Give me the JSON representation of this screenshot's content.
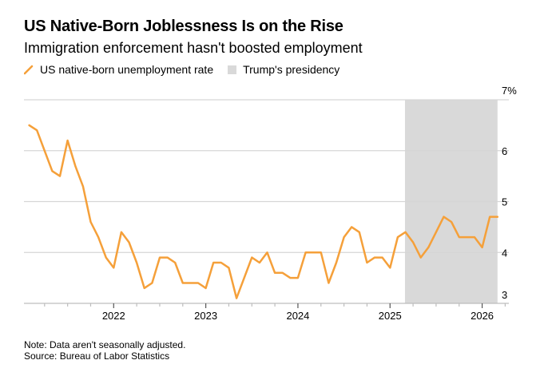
{
  "header": {
    "title": "US Native-Born Joblessness Is on the Rise",
    "subtitle": "Immigration enforcement hasn't boosted employment"
  },
  "legend": {
    "series_label": "US native-born unemployment rate",
    "shading_label": "Trump's presidency"
  },
  "footer": {
    "note": "Note: Data aren't seasonally adjusted.",
    "source": "Source: Bureau of Labor Statistics"
  },
  "colors": {
    "line": "#f5a03a",
    "shading": "#d9d9d9",
    "grid": "#d6d6d6",
    "axis": "#bdbdbd"
  },
  "chart_data": {
    "type": "line",
    "title": "US Native-Born Joblessness Is on the Rise",
    "subtitle": "Immigration enforcement hasn't boosted employment",
    "xlabel": "",
    "ylabel": "",
    "ylim": [
      3,
      7
    ],
    "y_ticks": [
      "3",
      "4",
      "5",
      "6",
      "7%"
    ],
    "x_ticks": [
      "2022",
      "2023",
      "2024",
      "2025",
      "2026"
    ],
    "grid": true,
    "legend_position": "top-left",
    "y_axis_side": "right",
    "shaded_region": {
      "name": "Trump's presidency",
      "start": "2025-03",
      "end": "2026-03"
    },
    "series": [
      {
        "name": "US native-born unemployment rate",
        "x": [
          "2021-02",
          "2021-03",
          "2021-04",
          "2021-05",
          "2021-06",
          "2021-07",
          "2021-08",
          "2021-09",
          "2021-10",
          "2021-11",
          "2021-12",
          "2022-01",
          "2022-02",
          "2022-03",
          "2022-04",
          "2022-05",
          "2022-06",
          "2022-07",
          "2022-08",
          "2022-09",
          "2022-10",
          "2022-11",
          "2022-12",
          "2023-01",
          "2023-02",
          "2023-03",
          "2023-04",
          "2023-05",
          "2023-06",
          "2023-07",
          "2023-08",
          "2023-09",
          "2023-10",
          "2023-11",
          "2023-12",
          "2024-01",
          "2024-02",
          "2024-03",
          "2024-04",
          "2024-05",
          "2024-06",
          "2024-07",
          "2024-08",
          "2024-09",
          "2024-10",
          "2024-11",
          "2024-12",
          "2025-01",
          "2025-02",
          "2025-03",
          "2025-04",
          "2025-05",
          "2025-06",
          "2025-07",
          "2025-08",
          "2025-09",
          "2025-10",
          "2025-11",
          "2025-12",
          "2026-01",
          "2026-02",
          "2026-03"
        ],
        "values": [
          6.5,
          6.4,
          6.0,
          5.6,
          5.5,
          6.2,
          5.7,
          5.3,
          4.6,
          4.3,
          3.9,
          3.7,
          4.4,
          4.2,
          3.8,
          3.3,
          3.4,
          3.9,
          3.9,
          3.8,
          3.4,
          3.4,
          3.4,
          3.3,
          3.8,
          3.8,
          3.7,
          3.1,
          3.5,
          3.9,
          3.8,
          4.0,
          3.6,
          3.6,
          3.5,
          3.5,
          4.0,
          4.0,
          4.0,
          3.4,
          3.8,
          4.3,
          4.5,
          4.4,
          3.8,
          3.9,
          3.9,
          3.7,
          4.3,
          4.4,
          4.2,
          3.9,
          4.1,
          4.4,
          4.7,
          4.6,
          4.3,
          4.3,
          4.3,
          4.1,
          4.7,
          4.7
        ]
      }
    ]
  }
}
